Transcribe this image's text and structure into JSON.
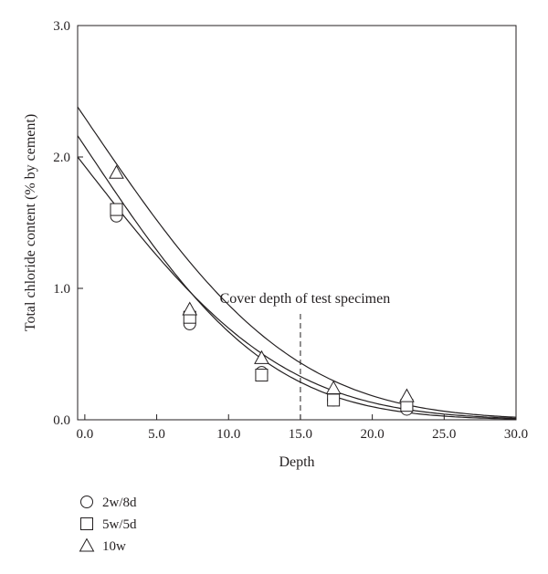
{
  "chart_data": {
    "type": "scatter",
    "title": "",
    "xlabel": "Depth",
    "ylabel": "Total chloride content (% by cement)",
    "xlim": [
      -0.5,
      30.0
    ],
    "ylim": [
      0.0,
      3.0
    ],
    "x_ticks": [
      0,
      5,
      10,
      15,
      20,
      25,
      30
    ],
    "x_tick_labels": [
      "0.0",
      "5.0",
      "10.0",
      "15.0",
      "20.0",
      "25.0",
      "30.0"
    ],
    "y_ticks": [
      0,
      1,
      2,
      3
    ],
    "y_tick_labels": [
      "0.0",
      "1.0",
      "2.0",
      "3.0"
    ],
    "grid": false,
    "legend_position": "bottom-left",
    "annotation": {
      "text": "Cover depth of test specimen",
      "x": 15.0,
      "line_from_y": 0.0,
      "line_to_y": 0.82,
      "line_style": "dashed"
    },
    "series": [
      {
        "name": "2w/8d",
        "marker": "circle",
        "points": [
          {
            "x": 2.2,
            "y": 1.55
          },
          {
            "x": 7.3,
            "y": 0.73
          },
          {
            "x": 12.3,
            "y": 0.36
          },
          {
            "x": 17.3,
            "y": 0.15
          },
          {
            "x": 22.4,
            "y": 0.08
          }
        ],
        "fit": {
          "c0": 1.93,
          "D": 60
        }
      },
      {
        "name": "5w/5d",
        "marker": "square",
        "points": [
          {
            "x": 2.2,
            "y": 1.6
          },
          {
            "x": 7.3,
            "y": 0.78
          },
          {
            "x": 12.3,
            "y": 0.34
          },
          {
            "x": 17.3,
            "y": 0.15
          },
          {
            "x": 22.4,
            "y": 0.11
          }
        ],
        "fit": {
          "c0": 2.08,
          "D": 51
        }
      },
      {
        "name": "10w",
        "marker": "triangle",
        "points": [
          {
            "x": 2.2,
            "y": 1.88
          },
          {
            "x": 7.3,
            "y": 0.84
          },
          {
            "x": 12.3,
            "y": 0.47
          },
          {
            "x": 17.3,
            "y": 0.24
          },
          {
            "x": 22.4,
            "y": 0.18
          }
        ],
        "fit": {
          "c0": 2.3,
          "D": 65
        }
      }
    ]
  }
}
